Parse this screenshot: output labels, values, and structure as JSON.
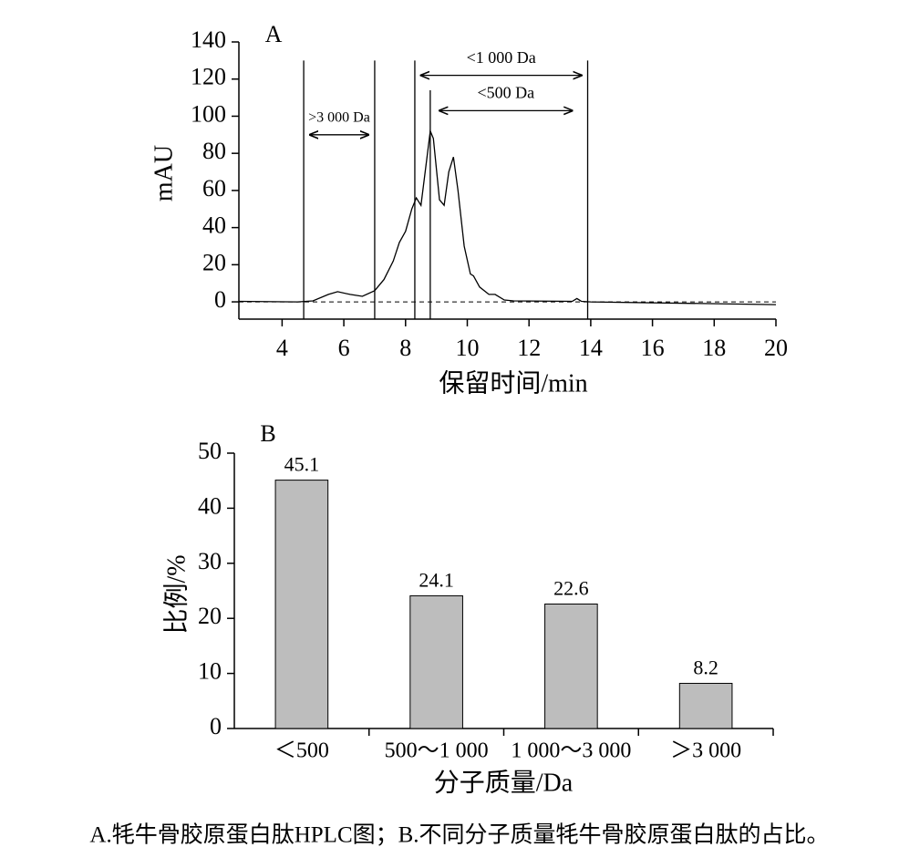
{
  "chart_data": [
    {
      "type": "line",
      "panel": "A",
      "y_title": "mAU",
      "x_title": "保留时间/min",
      "x": [
        2.6,
        4.5,
        5.0,
        5.5,
        5.8,
        6.2,
        6.6,
        7.0,
        7.3,
        7.6,
        7.8,
        8.0,
        8.2,
        8.35,
        8.5,
        8.65,
        8.8,
        8.9,
        9.1,
        9.25,
        9.4,
        9.55,
        9.7,
        9.9,
        10.1,
        10.2,
        10.4,
        10.7,
        10.9,
        11.2,
        11.5,
        13.4,
        13.55,
        13.7,
        14.0,
        20.0
      ],
      "values": [
        0.3,
        0,
        0.5,
        4,
        5.5,
        4,
        3,
        6,
        12,
        22,
        32,
        38,
        50,
        56,
        52,
        72,
        92,
        88,
        55,
        52,
        70,
        78,
        60,
        30,
        15,
        14,
        8,
        4,
        4,
        1,
        0.5,
        0.3,
        1.8,
        0.3,
        0,
        -1.5
      ],
      "color": "#000000",
      "xlim": [
        2.6,
        20
      ],
      "ylim": [
        -9.3,
        140
      ],
      "xticks": [
        4,
        6,
        8,
        10,
        12,
        14,
        16,
        18,
        20
      ],
      "yticks": [
        0,
        20,
        40,
        60,
        80,
        100,
        120,
        140
      ],
      "zero_line": "dashed",
      "vlines": [
        {
          "x": 4.7,
          "top": 130
        },
        {
          "x": 7.0,
          "top": 130
        },
        {
          "x": 8.3,
          "top": 130
        },
        {
          "x": 8.8,
          "top": 114
        },
        {
          "x": 13.9,
          "top": 130
        }
      ],
      "annotations": [
        {
          "text": ">3 000 Da",
          "x1": 4.9,
          "x2": 6.8,
          "y": 90
        },
        {
          "text": "<1 000 Da",
          "x1": 8.5,
          "x2": 13.7,
          "y": 122
        },
        {
          "text": "<500 Da",
          "x1": 9.1,
          "x2": 13.4,
          "y": 103
        }
      ]
    },
    {
      "type": "bar",
      "panel": "B",
      "y_title": "比例/%",
      "x_title": "分子质量/Da",
      "categories": [
        "＜500",
        "500～1 000",
        "1 000～3 000",
        "＞3 000"
      ],
      "values": [
        45.1,
        24.1,
        22.6,
        8.2
      ],
      "color": "#bdbdbd",
      "ylim": [
        0,
        50
      ],
      "yticks": [
        0,
        10,
        20,
        30,
        40,
        50
      ]
    }
  ],
  "caption": "A.牦牛骨胶原蛋白肽HPLC图；B.不同分子质量牦牛骨胶原蛋白肽的占比。"
}
